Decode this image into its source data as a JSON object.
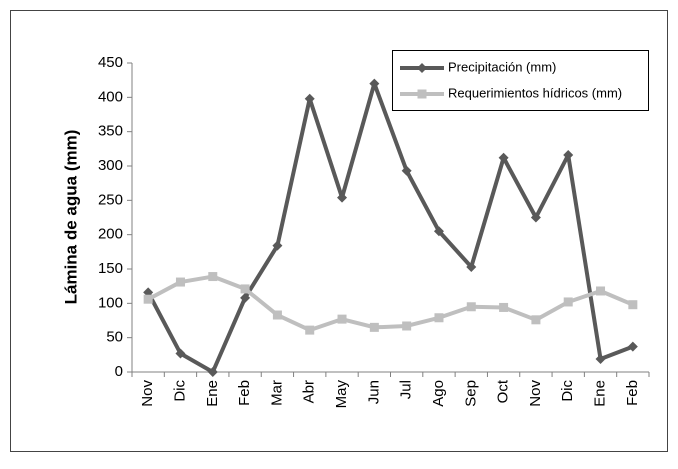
{
  "chart_data": {
    "type": "line",
    "y_label": "Lámina de agua (mm)",
    "categories": [
      "Nov",
      "Dic",
      "Ene",
      "Feb",
      "Mar",
      "Abr",
      "May",
      "Jun",
      "Jul",
      "Ago",
      "Sep",
      "Oct",
      "Nov",
      "Dic",
      "Ene",
      "Feb"
    ],
    "series": [
      {
        "name": "Precipitación (mm)",
        "color": "#595959",
        "marker": "diamond",
        "values": [
          116,
          27,
          0,
          108,
          184,
          398,
          254,
          420,
          293,
          205,
          153,
          312,
          225,
          316,
          19,
          37
        ]
      },
      {
        "name": "Requerimientos hídricos (mm)",
        "color": "#bfbfbf",
        "marker": "square",
        "values": [
          106,
          131,
          139,
          121,
          83,
          61,
          77,
          65,
          67,
          79,
          95,
          94,
          76,
          102,
          118,
          98
        ]
      }
    ],
    "ylim": [
      0,
      450
    ],
    "yticks": [
      0,
      50,
      100,
      150,
      200,
      250,
      300,
      350,
      400,
      450
    ],
    "legend": "upper right"
  }
}
